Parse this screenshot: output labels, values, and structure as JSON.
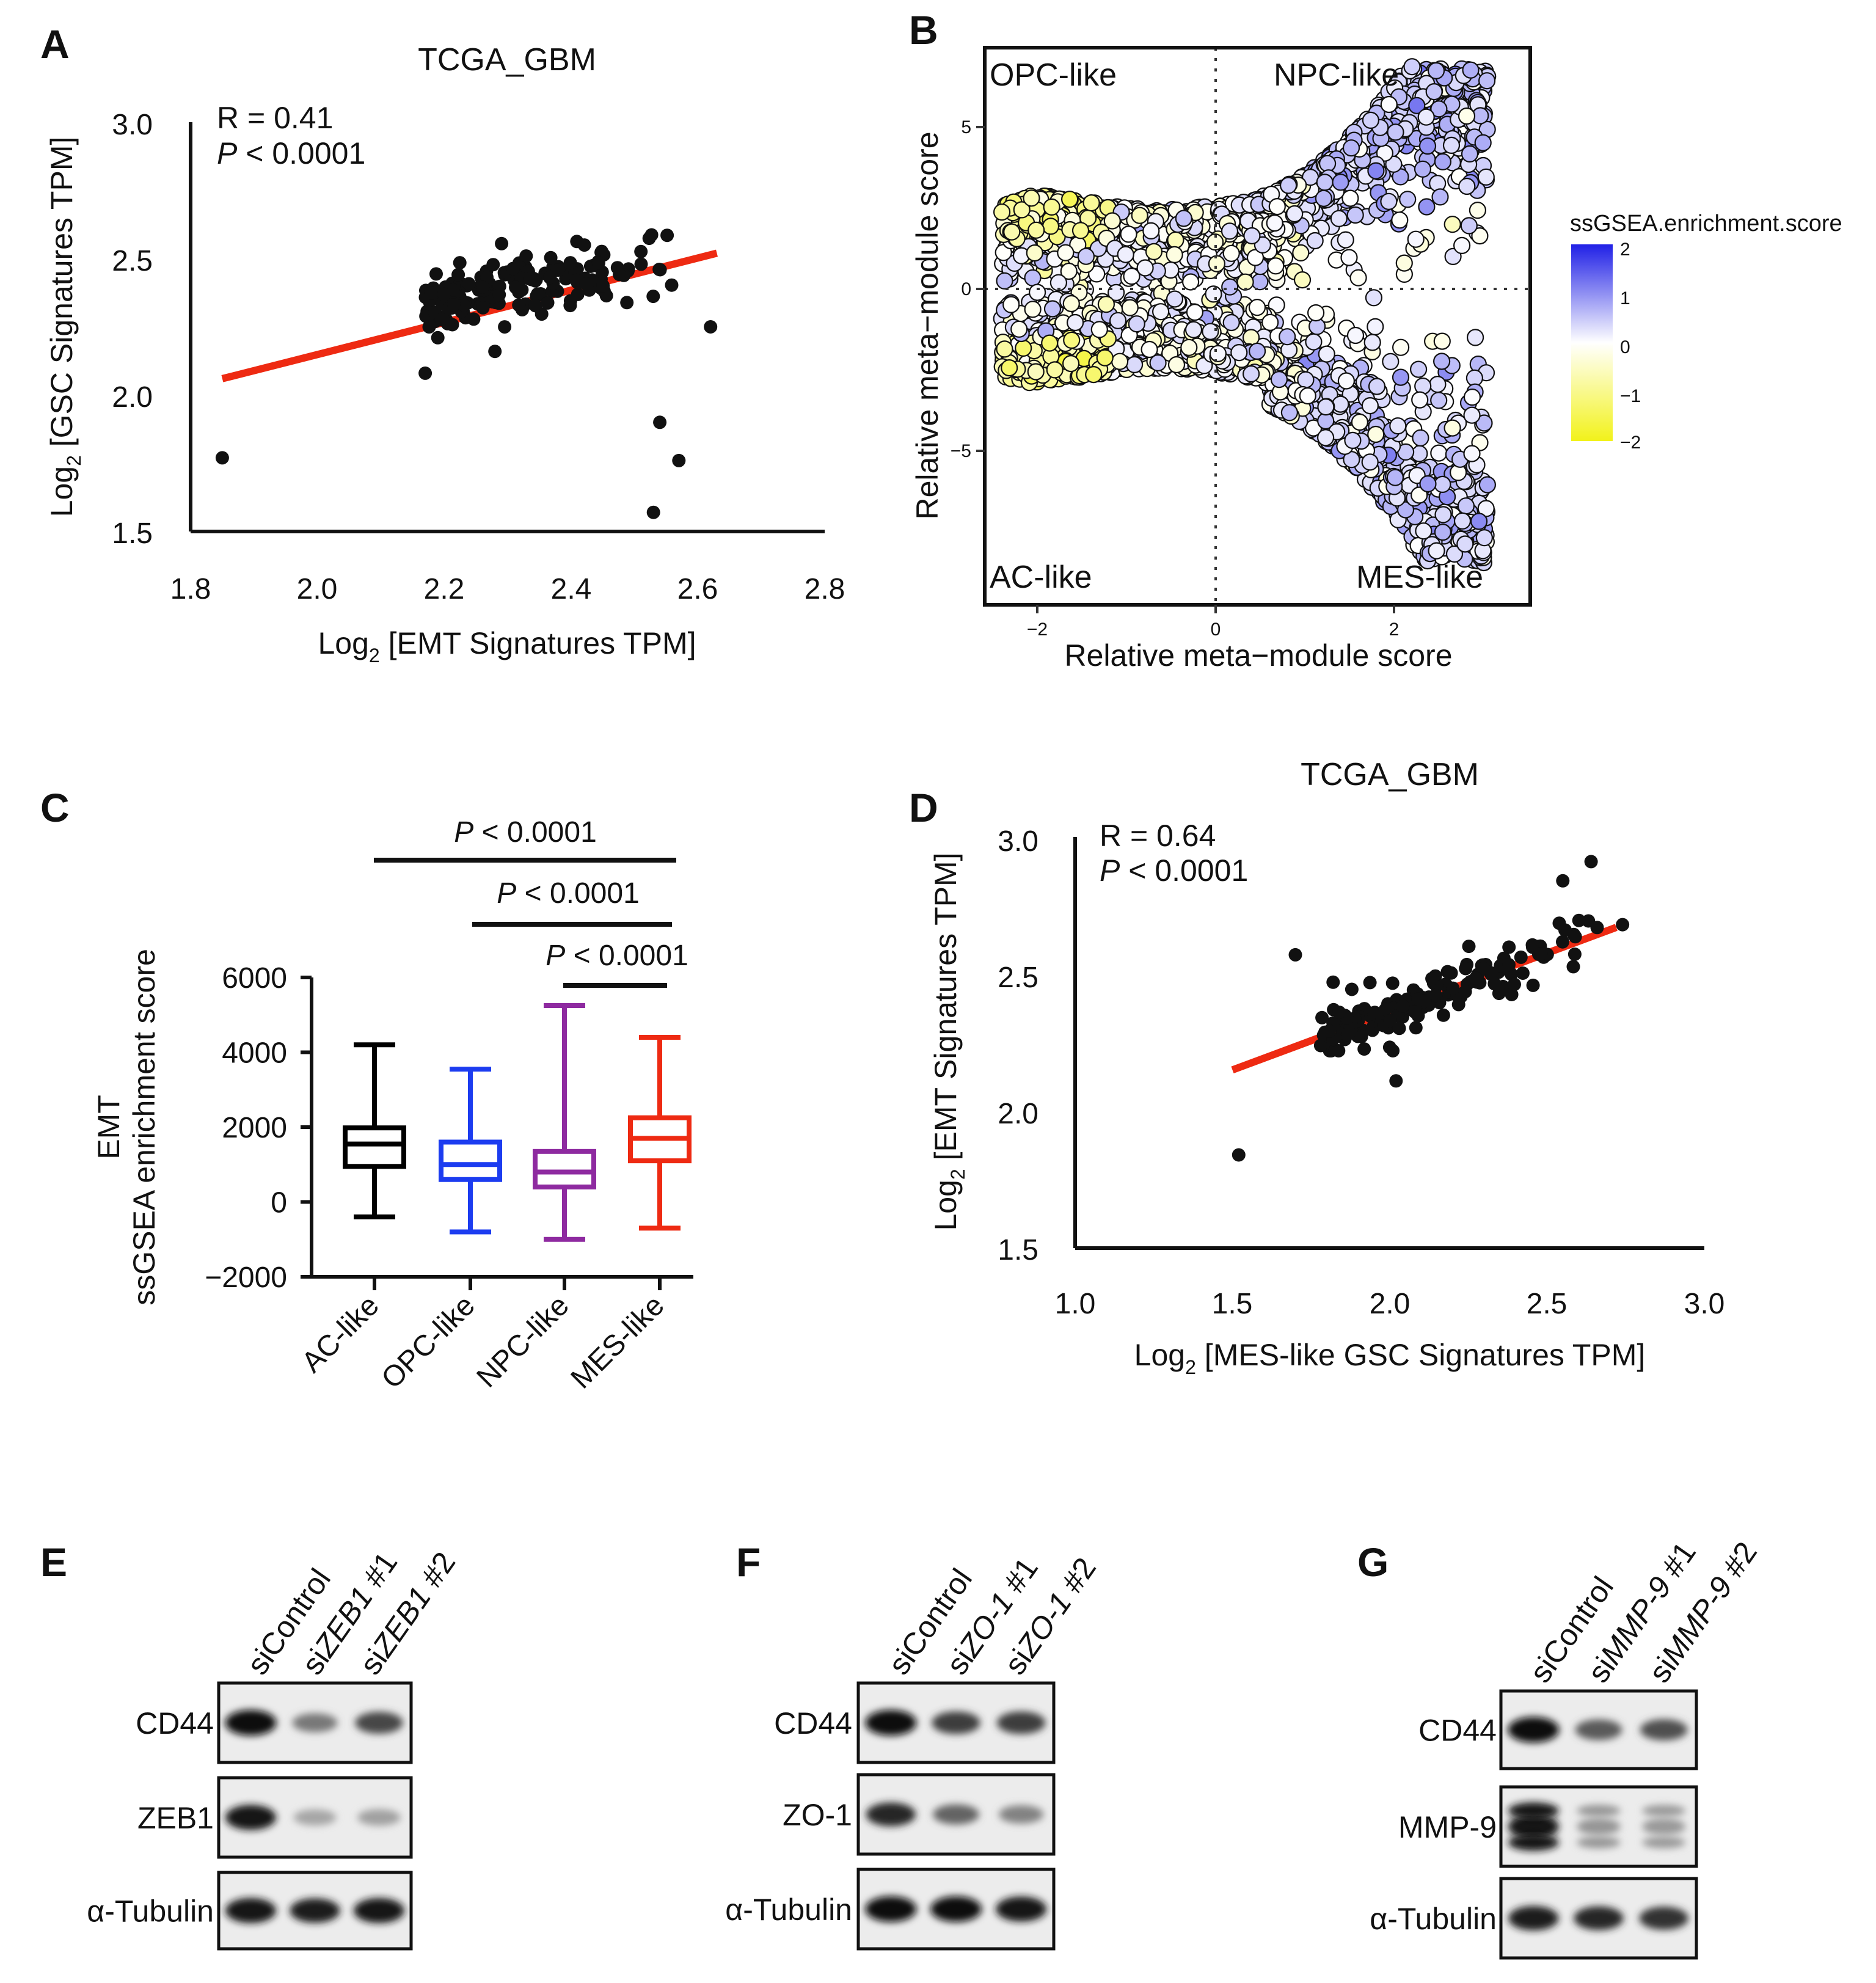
{
  "colors": {
    "red_fit": "#ee2a12",
    "black": "#111111",
    "ac": "#000000",
    "opc": "#1c3cf0",
    "npc": "#8e2aa0",
    "mes": "#ee2a12",
    "scale_high": "#2020e6",
    "scale_mid": "#ffffff",
    "scale_low": "#f2f21a"
  },
  "chart_data": [
    {
      "id": "A",
      "type": "scatter",
      "panel_label": "A",
      "title": "TCGA_GBM",
      "stat_r": "R = 0.41",
      "stat_p_italic": "P",
      "stat_p_rest": " < 0.0001",
      "xlabel_pre": "Log",
      "xlabel_sub": "2",
      "xlabel_post": " [EMT Signatures TPM]",
      "ylabel_pre": "Log",
      "ylabel_sub": "2",
      "ylabel_post": " [GSC Signatures TPM]",
      "xlim": [
        1.8,
        2.8
      ],
      "ylim": [
        1.5,
        3.0
      ],
      "xticks": [
        "1.8",
        "2.0",
        "2.2",
        "2.4",
        "2.6",
        "2.8"
      ],
      "yticks": [
        "1.5",
        "2.0",
        "2.5",
        "3.0"
      ],
      "fit_line": {
        "x": [
          1.85,
          2.63
        ],
        "y": [
          2.06,
          2.52
        ]
      },
      "outliers": [
        [
          1.85,
          1.77
        ],
        [
          2.54,
          1.9
        ],
        [
          2.57,
          1.76
        ],
        [
          2.53,
          1.57
        ],
        [
          2.17,
          2.08
        ],
        [
          2.28,
          2.16
        ],
        [
          2.62,
          2.25
        ]
      ],
      "cluster": {
        "n": 165,
        "x_range": [
          2.17,
          2.62
        ],
        "y_center": 2.43,
        "y_spread": 0.2,
        "seed": 11
      }
    },
    {
      "id": "B",
      "type": "scatter",
      "panel_label": "B",
      "xlabel": "Relative meta−module score",
      "ylabel": "Relative meta−module score",
      "xticks": [
        "−2",
        "0",
        "2"
      ],
      "yticks": [
        "5",
        "0",
        "−5"
      ],
      "quadrants": [
        "OPC-like",
        "NPC-like",
        "AC-like",
        "MES-like"
      ],
      "legend_title": "ssGSEA.enrichment.score",
      "legend_ticks": [
        "2",
        "1",
        "0",
        "−1",
        "−2"
      ],
      "color_range": [
        -2,
        2
      ],
      "n_cells": 3400
    },
    {
      "id": "C",
      "type": "box",
      "panel_label": "C",
      "ylabel_line1": "EMT",
      "ylabel_line2": "ssGSEA enrichment score",
      "ylim": [
        -2000,
        6000
      ],
      "yticks": [
        "6000",
        "4000",
        "2000",
        "0",
        "−2000"
      ],
      "categories": [
        "AC-like",
        "OPC-like",
        "NPC-like",
        "MES-like"
      ],
      "boxes": [
        {
          "name": "AC-like",
          "min": -400,
          "q1": 950,
          "median": 1550,
          "q3": 1980,
          "max": 4200
        },
        {
          "name": "OPC-like",
          "min": -800,
          "q1": 600,
          "median": 1000,
          "q3": 1600,
          "max": 3550
        },
        {
          "name": "NPC-like",
          "min": -1000,
          "q1": 400,
          "median": 800,
          "q3": 1350,
          "max": 5250
        },
        {
          "name": "MES-like",
          "min": -700,
          "q1": 1100,
          "median": 1700,
          "q3": 2250,
          "max": 4400
        }
      ],
      "comparisons": [
        {
          "from": "AC-like",
          "to": "MES-like",
          "italic": "P",
          "rest": " < 0.0001"
        },
        {
          "from": "OPC-like",
          "to": "MES-like",
          "italic": "P",
          "rest": " < 0.0001"
        },
        {
          "from": "NPC-like",
          "to": "MES-like",
          "italic": "P",
          "rest": " < 0.0001"
        }
      ]
    },
    {
      "id": "D",
      "type": "scatter",
      "panel_label": "D",
      "title": "TCGA_GBM",
      "stat_r": "R = 0.64",
      "stat_p_italic": "P",
      "stat_p_rest": " < 0.0001",
      "xlabel_pre": "Log",
      "xlabel_sub": "2",
      "xlabel_post": " [MES-like GSC Signatures TPM]",
      "ylabel_pre": "Log",
      "ylabel_sub": "2",
      "ylabel_post": " [EMT Signatures TPM]",
      "xlim": [
        1.0,
        3.0
      ],
      "ylim": [
        1.5,
        3.0
      ],
      "xticks": [
        "1.0",
        "1.5",
        "2.0",
        "2.5",
        "3.0"
      ],
      "yticks": [
        "1.5",
        "2.0",
        "2.5",
        "3.0"
      ],
      "fit_line": {
        "x": [
          1.5,
          2.72
        ],
        "y": [
          2.15,
          2.67
        ]
      },
      "outliers": [
        [
          1.52,
          1.84
        ],
        [
          1.7,
          2.57
        ],
        [
          2.02,
          2.11
        ],
        [
          1.82,
          2.47
        ],
        [
          2.01,
          2.22
        ],
        [
          2.55,
          2.84
        ],
        [
          2.64,
          2.91
        ],
        [
          2.74,
          2.68
        ]
      ],
      "cluster": {
        "n": 160,
        "x_range": [
          1.78,
          2.72
        ],
        "slope": 0.43,
        "x_ref": 1.5,
        "y_ref": 2.15,
        "y_spread": 0.16,
        "seed": 7
      }
    }
  ],
  "blots": [
    {
      "id": "E",
      "panel_label": "E",
      "lanes": [
        {
          "prefix": "si",
          "italic": "",
          "suffix": "Control"
        },
        {
          "prefix": "si",
          "italic": "ZEB1",
          "suffix": " #1"
        },
        {
          "prefix": "si",
          "italic": "ZEB1",
          "suffix": " #2"
        }
      ],
      "rows": [
        {
          "label": "CD44",
          "intensity": [
            1.0,
            0.45,
            0.7
          ]
        },
        {
          "label": "ZEB1",
          "intensity": [
            0.95,
            0.22,
            0.25
          ]
        },
        {
          "label": "α-Tubulin",
          "intensity": [
            0.95,
            0.9,
            0.95
          ]
        }
      ]
    },
    {
      "id": "F",
      "panel_label": "F",
      "lanes": [
        {
          "prefix": "si",
          "italic": "",
          "suffix": "Control"
        },
        {
          "prefix": "si",
          "italic": "ZO-1",
          "suffix": " #1"
        },
        {
          "prefix": "si",
          "italic": "ZO-1",
          "suffix": " #2"
        }
      ],
      "rows": [
        {
          "label": "CD44",
          "intensity": [
            1.0,
            0.75,
            0.75
          ]
        },
        {
          "label": "ZO-1",
          "intensity": [
            0.85,
            0.55,
            0.4
          ]
        },
        {
          "label": "α-Tubulin",
          "intensity": [
            1.0,
            1.0,
            0.95
          ]
        }
      ]
    },
    {
      "id": "G",
      "panel_label": "G",
      "lanes": [
        {
          "prefix": "si",
          "italic": "",
          "suffix": "Control"
        },
        {
          "prefix": "si",
          "italic": "MMP-9",
          "suffix": " #1"
        },
        {
          "prefix": "si",
          "italic": "MMP-9",
          "suffix": " #2"
        }
      ],
      "rows": [
        {
          "label": "CD44",
          "intensity": [
            1.0,
            0.6,
            0.65
          ]
        },
        {
          "label": "MMP-9",
          "intensity": [
            0.95,
            0.3,
            0.28
          ]
        },
        {
          "label": "α-Tubulin",
          "intensity": [
            0.9,
            0.85,
            0.8
          ]
        }
      ]
    }
  ]
}
